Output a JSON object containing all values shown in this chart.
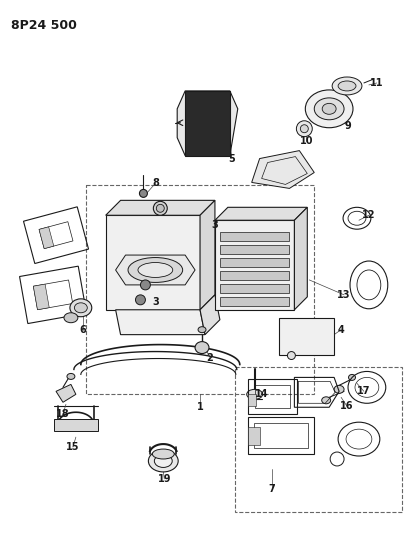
{
  "title": "8P24 500",
  "bg": "#ffffff",
  "lc": "#1a1a1a",
  "figsize": [
    4.11,
    5.33
  ],
  "dpi": 100
}
